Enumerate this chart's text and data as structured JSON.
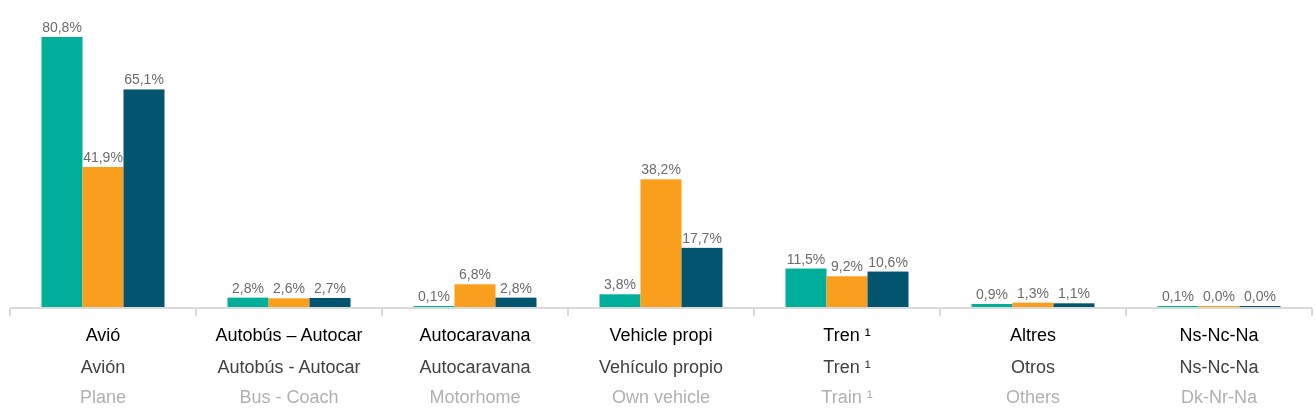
{
  "chart_data": {
    "type": "bar",
    "categories": [
      "Avió\nAvión\nPlane",
      "Autobús – Autocar\nAutobús - Autocar\nBus - Coach",
      "Autocaravana\nAutocaravana\nMotorhome",
      "Vehicle propi\nVehículo propio\nOwn vehicle",
      "Tren ¹\nTren ¹\nTrain ¹",
      "Altres\nOtros\nOthers",
      "Ns-Nc-Na\nNs-Nc-Na\nDk-Nr-Na"
    ],
    "series": [
      {
        "color": "#00ae9a",
        "values": [
          80.8,
          2.8,
          0.1,
          3.8,
          11.5,
          0.9,
          0.1
        ],
        "value_labels": [
          "80,8%",
          "2,8%",
          "0,1%",
          "3,8%",
          "11,5%",
          "0,9%",
          "0,1%"
        ]
      },
      {
        "color": "#fa9e1e",
        "values": [
          41.9,
          2.6,
          6.8,
          38.2,
          9.2,
          1.3,
          0.0
        ],
        "value_labels": [
          "41,9%",
          "2,6%",
          "6,8%",
          "38,2%",
          "9,2%",
          "1,3%",
          "0,0%"
        ]
      },
      {
        "color": "#02546f",
        "values": [
          65.1,
          2.7,
          2.8,
          17.7,
          10.6,
          1.1,
          0.0
        ],
        "value_labels": [
          "65,1%",
          "2,7%",
          "2,8%",
          "17,7%",
          "10,6%",
          "1,1%",
          "0,0%"
        ]
      }
    ]
  }
}
